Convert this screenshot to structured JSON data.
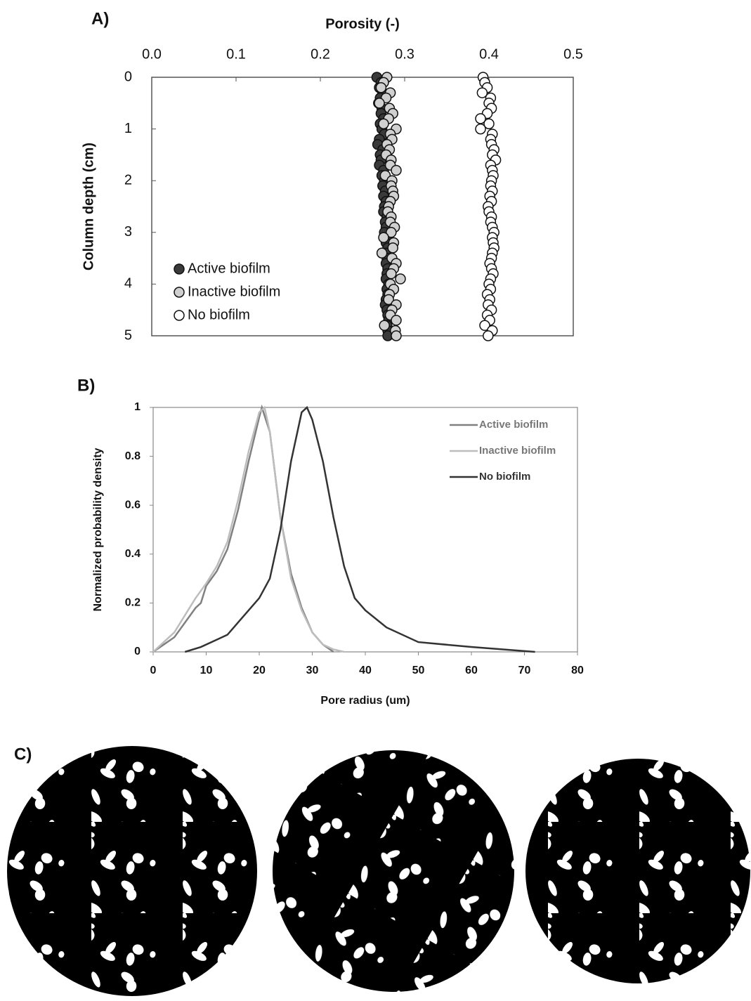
{
  "chart_data": [
    {
      "type": "scatter",
      "label": "A)",
      "xlabel": "Porosity (-)",
      "ylabel": "Column depth (cm)",
      "xlim": [
        0,
        0.5
      ],
      "xticks": [
        {
          "value": 0,
          "label": "0.0"
        },
        {
          "value": 0.1,
          "label": "0.1"
        },
        {
          "value": 0.2,
          "label": "0.2"
        },
        {
          "value": 0.3,
          "label": "0.3"
        },
        {
          "value": 0.4,
          "label": "0.4"
        },
        {
          "value": 0.5,
          "label": "0.5"
        }
      ],
      "ylim": [
        0,
        5
      ],
      "yticks": [
        0,
        1,
        2,
        3,
        4,
        5
      ],
      "y_inverted": true,
      "x_axis_top": true,
      "legend": "lower left",
      "y": [
        0,
        0.1,
        0.2,
        0.3,
        0.4,
        0.5,
        0.6,
        0.7,
        0.8,
        0.9,
        1,
        1.1,
        1.2,
        1.3,
        1.4,
        1.5,
        1.6,
        1.7,
        1.8,
        1.9,
        2,
        2.1,
        2.2,
        2.3,
        2.4,
        2.5,
        2.6,
        2.7,
        2.8,
        2.9,
        3,
        3.1,
        3.2,
        3.3,
        3.4,
        3.5,
        3.6,
        3.7,
        3.8,
        3.9,
        4,
        4.1,
        4.2,
        4.3,
        4.4,
        4.5,
        4.6,
        4.7,
        4.8,
        4.9,
        5
      ],
      "series": [
        {
          "name": "Active biofilm",
          "color": "#3a3a3a",
          "x": [
            0.267,
            0.272,
            0.27,
            0.274,
            0.271,
            0.269,
            0.273,
            0.272,
            0.275,
            0.271,
            0.273,
            0.276,
            0.27,
            0.268,
            0.274,
            0.271,
            0.272,
            0.27,
            0.275,
            0.273,
            0.276,
            0.274,
            0.277,
            0.275,
            0.278,
            0.276,
            0.275,
            0.279,
            0.277,
            0.278,
            0.276,
            0.279,
            0.278,
            0.28,
            0.277,
            0.279,
            0.278,
            0.28,
            0.279,
            0.278,
            0.281,
            0.279,
            0.28,
            0.278,
            0.277,
            0.279,
            0.28,
            0.281,
            0.279,
            0.28,
            0.28
          ]
        },
        {
          "name": "Inactive biofilm",
          "color": "#d0d0d0",
          "x": [
            0.279,
            0.275,
            0.272,
            0.283,
            0.278,
            0.27,
            0.282,
            0.286,
            0.281,
            0.275,
            0.29,
            0.283,
            0.285,
            0.279,
            0.282,
            0.278,
            0.284,
            0.283,
            0.29,
            0.277,
            0.285,
            0.284,
            0.286,
            0.287,
            0.283,
            0.281,
            0.28,
            0.284,
            0.283,
            0.288,
            0.284,
            0.275,
            0.287,
            0.286,
            0.273,
            0.285,
            0.29,
            0.287,
            0.284,
            0.295,
            0.283,
            0.287,
            0.282,
            0.281,
            0.29,
            0.285,
            0.283,
            0.29,
            0.276,
            0.289,
            0.29
          ]
        },
        {
          "name": "No biofilm",
          "color": "#ffffff",
          "x": [
            0.393,
            0.395,
            0.398,
            0.392,
            0.402,
            0.4,
            0.403,
            0.398,
            0.39,
            0.4,
            0.39,
            0.404,
            0.402,
            0.403,
            0.406,
            0.404,
            0.408,
            0.402,
            0.404,
            0.405,
            0.403,
            0.402,
            0.404,
            0.401,
            0.403,
            0.399,
            0.4,
            0.403,
            0.402,
            0.404,
            0.406,
            0.404,
            0.405,
            0.406,
            0.404,
            0.403,
            0.401,
            0.403,
            0.405,
            0.402,
            0.4,
            0.402,
            0.398,
            0.401,
            0.399,
            0.403,
            0.398,
            0.401,
            0.395,
            0.404,
            0.399
          ]
        }
      ]
    },
    {
      "type": "line",
      "label": "B)",
      "xlabel": "Pore radius (um)",
      "ylabel": "Normalized probability density",
      "xlim": [
        0,
        80
      ],
      "xticks": [
        0,
        10,
        20,
        30,
        40,
        50,
        60,
        70,
        80
      ],
      "ylim": [
        0,
        1
      ],
      "yticks": [
        0,
        0.2,
        0.4,
        0.6,
        0.8,
        1
      ],
      "legend": "upper right",
      "series": [
        {
          "name": "Active biofilm",
          "color": "#808080",
          "x": [
            0,
            2,
            4,
            6,
            8,
            9,
            10,
            12,
            14,
            16,
            18,
            20,
            20.5,
            22,
            24,
            26,
            28,
            30,
            32,
            34
          ],
          "values": [
            0,
            0.03,
            0.06,
            0.12,
            0.18,
            0.2,
            0.27,
            0.33,
            0.42,
            0.58,
            0.78,
            0.96,
            1,
            0.9,
            0.55,
            0.32,
            0.18,
            0.08,
            0.03,
            0
          ]
        },
        {
          "name": "Inactive biofilm",
          "color": "#bdbdbd",
          "x": [
            0,
            2,
            4,
            6,
            8,
            10,
            12,
            14,
            16,
            18,
            20,
            21,
            22,
            24,
            26,
            28,
            30,
            32,
            34,
            36
          ],
          "values": [
            0,
            0.04,
            0.08,
            0.15,
            0.22,
            0.28,
            0.35,
            0.45,
            0.62,
            0.82,
            0.98,
            1,
            0.9,
            0.55,
            0.3,
            0.17,
            0.08,
            0.03,
            0.01,
            0
          ]
        },
        {
          "name": "No biofilm",
          "color": "#333333",
          "x": [
            6,
            9,
            12,
            14,
            16,
            18,
            20,
            22,
            24,
            26,
            28,
            29,
            30,
            32,
            34,
            36,
            38,
            40,
            44,
            50,
            60,
            72
          ],
          "values": [
            0,
            0.02,
            0.05,
            0.07,
            0.12,
            0.17,
            0.22,
            0.3,
            0.5,
            0.78,
            0.98,
            1,
            0.95,
            0.78,
            0.55,
            0.35,
            0.22,
            0.17,
            0.1,
            0.04,
            0.02,
            0
          ]
        }
      ]
    }
  ],
  "images": {
    "label": "C)"
  }
}
